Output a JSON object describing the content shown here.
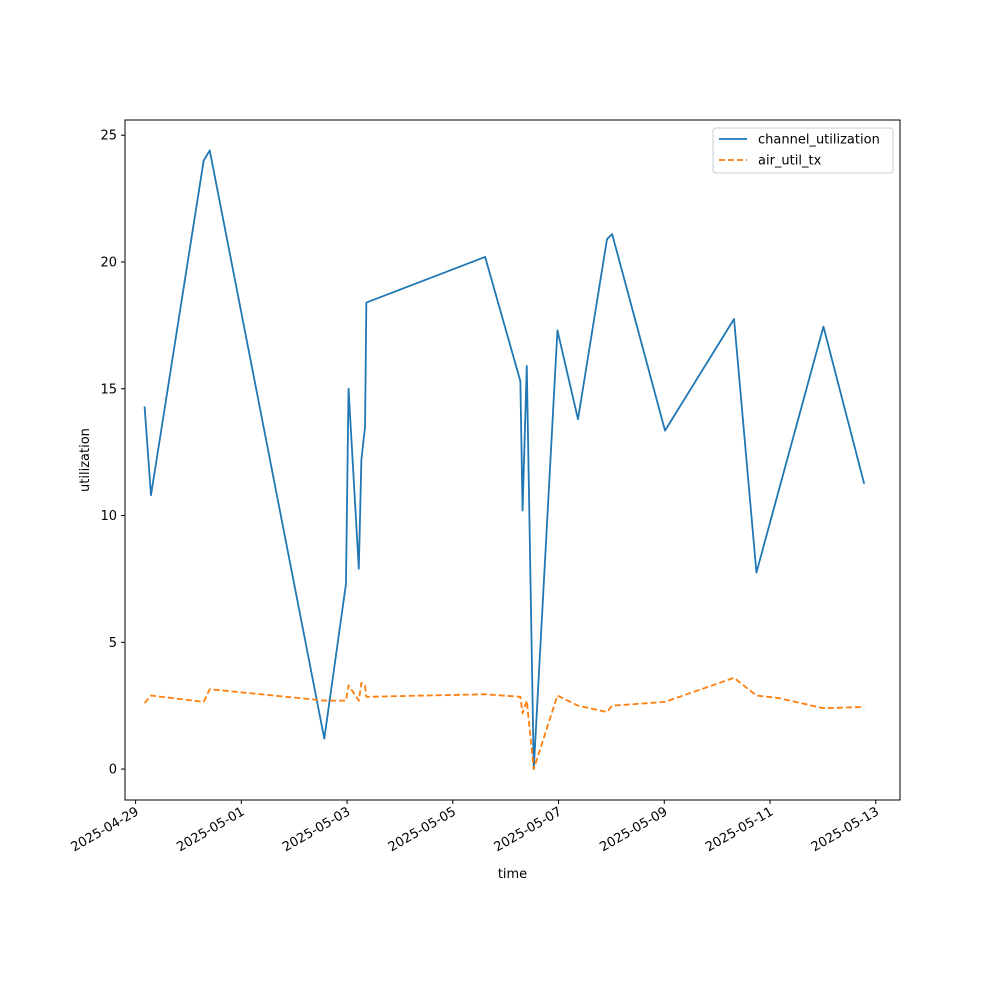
{
  "chart_data": {
    "type": "line",
    "title": "",
    "xlabel": "time",
    "ylabel": "utilization",
    "ylim": [
      -1.22,
      25.6
    ],
    "xlim": [
      "2025-04-28 19:12",
      "2025-05-13 11:00"
    ],
    "x_ticks": [
      "2025-04-29",
      "2025-05-01",
      "2025-05-03",
      "2025-05-05",
      "2025-05-07",
      "2025-05-09",
      "2025-05-11",
      "2025-05-13"
    ],
    "y_ticks": [
      0,
      5,
      10,
      15,
      20,
      25
    ],
    "legend_position": "top-right",
    "grid": false,
    "series": [
      {
        "name": "channel_utilization",
        "color": "#1f77b4",
        "dash": "solid",
        "points": [
          [
            "2025-04-29 04:05",
            14.3
          ],
          [
            "2025-04-29 07:00",
            10.8
          ],
          [
            "2025-04-30 06:55",
            24.0
          ],
          [
            "2025-04-30 09:40",
            24.4
          ],
          [
            "2025-05-02 13:40",
            1.2
          ],
          [
            "2025-05-02 23:30",
            7.3
          ],
          [
            "2025-05-03 00:40",
            15.0
          ],
          [
            "2025-05-03 05:20",
            7.9
          ],
          [
            "2025-05-03 06:30",
            12.2
          ],
          [
            "2025-05-03 08:10",
            13.5
          ],
          [
            "2025-05-03 08:45",
            18.4
          ],
          [
            "2025-05-05 14:40",
            20.2
          ],
          [
            "2025-05-06 06:40",
            15.3
          ],
          [
            "2025-05-06 07:40",
            10.2
          ],
          [
            "2025-05-06 09:35",
            15.9
          ],
          [
            "2025-05-06 12:45",
            0.0
          ],
          [
            "2025-05-06 23:30",
            17.3
          ],
          [
            "2025-05-07 08:50",
            13.8
          ],
          [
            "2025-05-07 22:00",
            20.9
          ],
          [
            "2025-05-08 00:20",
            21.1
          ],
          [
            "2025-05-09 00:20",
            13.35
          ],
          [
            "2025-05-10 07:40",
            17.75
          ],
          [
            "2025-05-10 17:50",
            7.75
          ],
          [
            "2025-05-11 04:00",
            11.0
          ],
          [
            "2025-05-12 00:15",
            17.45
          ],
          [
            "2025-05-12 18:45",
            11.25
          ]
        ]
      },
      {
        "name": "air_util_tx",
        "color": "#ff7f0e",
        "dash": "dashed",
        "points": [
          [
            "2025-04-29 04:05",
            2.6
          ],
          [
            "2025-04-29 07:00",
            2.9
          ],
          [
            "2025-04-30 06:55",
            2.65
          ],
          [
            "2025-04-30 09:40",
            3.15
          ],
          [
            "2025-05-02 13:40",
            2.7
          ],
          [
            "2025-05-02 23:30",
            2.7
          ],
          [
            "2025-05-03 00:40",
            3.3
          ],
          [
            "2025-05-03 05:20",
            2.7
          ],
          [
            "2025-05-03 06:30",
            3.4
          ],
          [
            "2025-05-03 08:10",
            3.3
          ],
          [
            "2025-05-03 08:45",
            2.85
          ],
          [
            "2025-05-05 14:40",
            2.95
          ],
          [
            "2025-05-06 06:40",
            2.85
          ],
          [
            "2025-05-06 07:40",
            2.2
          ],
          [
            "2025-05-06 09:35",
            2.7
          ],
          [
            "2025-05-06 12:45",
            0.0
          ],
          [
            "2025-05-06 23:30",
            2.9
          ],
          [
            "2025-05-07 08:50",
            2.5
          ],
          [
            "2025-05-07 22:00",
            2.25
          ],
          [
            "2025-05-08 00:20",
            2.5
          ],
          [
            "2025-05-09 00:20",
            2.65
          ],
          [
            "2025-05-10 07:40",
            3.6
          ],
          [
            "2025-05-10 17:50",
            2.9
          ],
          [
            "2025-05-11 04:00",
            2.8
          ],
          [
            "2025-05-12 00:15",
            2.4
          ],
          [
            "2025-05-12 18:45",
            2.45
          ]
        ]
      }
    ]
  }
}
